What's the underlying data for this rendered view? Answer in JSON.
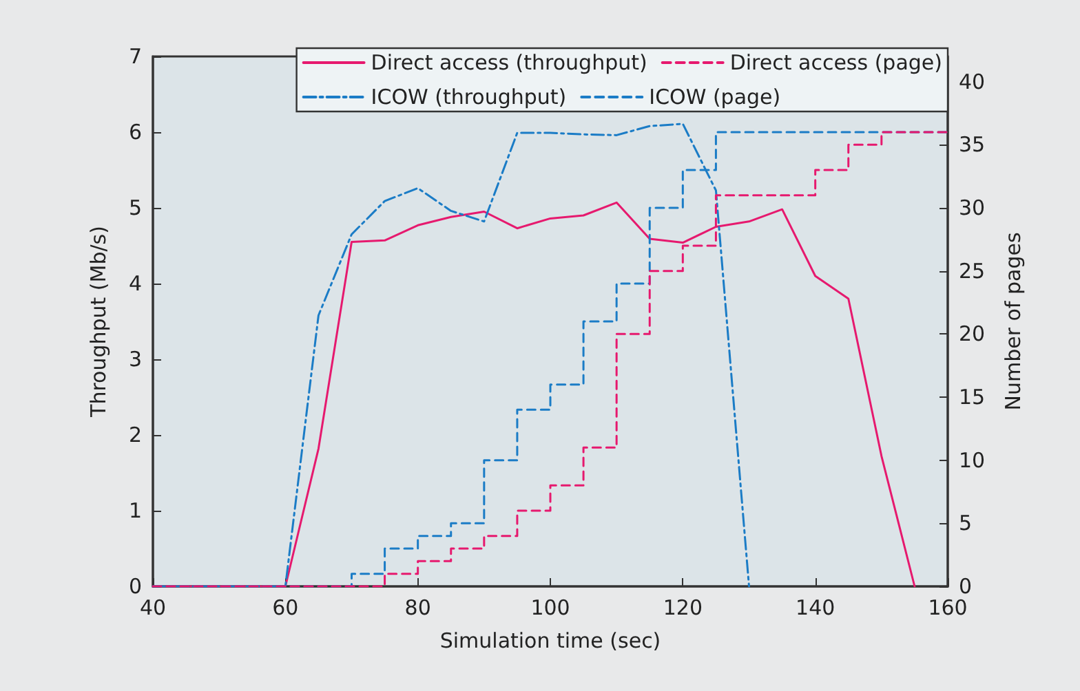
{
  "chart_data": {
    "type": "line",
    "xlabel": "Simulation time (sec)",
    "ylabel": "Throughput (Mb/s)",
    "y2label": "Number of pages",
    "xlim": [
      40,
      160
    ],
    "xticks": [
      40,
      60,
      80,
      100,
      120,
      140,
      160
    ],
    "ylim": [
      0,
      7
    ],
    "yticks": [
      0,
      1,
      2,
      3,
      4,
      5,
      6,
      7
    ],
    "y2lim": [
      0,
      42
    ],
    "y2ticks": [
      0,
      5,
      10,
      15,
      20,
      25,
      30,
      35,
      40
    ],
    "legend": "top right",
    "grid": false,
    "marker": "none",
    "series": [
      {
        "name": "Direct access (throughput)",
        "color": "#e6196e",
        "line_style": "solid",
        "x": [
          40,
          60,
          65,
          70,
          75,
          80,
          85,
          90,
          95,
          100,
          105,
          110,
          115,
          120,
          125,
          130,
          135,
          140,
          145,
          150,
          155
        ],
        "values": [
          0,
          0,
          1.82,
          4.55,
          4.57,
          4.77,
          4.88,
          4.95,
          4.73,
          4.86,
          4.9,
          5.07,
          4.59,
          4.54,
          4.75,
          4.82,
          4.98,
          4.1,
          3.8,
          1.72,
          0
        ]
      },
      {
        "name": "Direct access (page)",
        "type": "step",
        "axis": "y2",
        "color": "#e6196e",
        "line_style": "dashed",
        "x": [
          40,
          75,
          80,
          85,
          90,
          95,
          100,
          105,
          110,
          115,
          120,
          125,
          140,
          145,
          150,
          160
        ],
        "values": [
          0,
          1,
          2,
          3,
          4,
          6,
          8,
          11,
          20,
          25,
          27,
          31,
          33,
          35,
          36,
          36
        ]
      },
      {
        "name": "ICOW (throughput)",
        "color": "#1b7cc6",
        "line_style": "dashdot",
        "x": [
          40,
          60,
          65,
          70,
          75,
          80,
          85,
          90,
          95,
          100,
          105,
          110,
          115,
          120,
          125,
          130
        ],
        "values": [
          0,
          0,
          3.58,
          4.65,
          5.09,
          5.26,
          4.96,
          4.82,
          5.99,
          5.99,
          5.97,
          5.96,
          6.08,
          6.11,
          5.23,
          0
        ]
      },
      {
        "name": "ICOW (page)",
        "type": "step",
        "axis": "y2",
        "color": "#1b7cc6",
        "line_style": "dashed",
        "x": [
          40,
          70,
          75,
          80,
          85,
          90,
          95,
          100,
          105,
          110,
          115,
          120,
          125,
          160
        ],
        "values": [
          0,
          1,
          3,
          4,
          5,
          10,
          14,
          16,
          21,
          24,
          30,
          33,
          36,
          36
        ]
      }
    ]
  }
}
